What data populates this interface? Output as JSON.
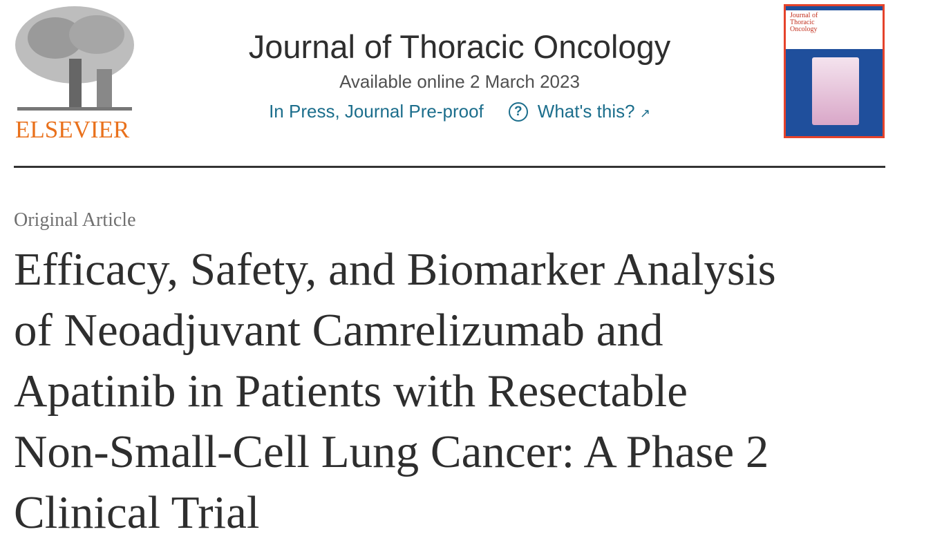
{
  "publisher": {
    "name": "ELSEVIER",
    "logo_icon": "elsevier-tree-logo",
    "color": "#e9711c"
  },
  "journal": {
    "title": "Journal of Thoracic Oncology",
    "available": "Available online 2 March 2023",
    "status": "In Press, Journal Pre-proof",
    "help_link": "What's this?",
    "help_icon": "question-circle-icon",
    "external_icon": "external-arrow-icon",
    "link_color": "#1c6e8c"
  },
  "cover": {
    "title_lines": [
      "Journal of",
      "Thoracic",
      "Oncology"
    ]
  },
  "article": {
    "type": "Original Article",
    "title_lines": [
      "Efficacy, Safety, and Biomarker Analysis",
      "of Neoadjuvant Camrelizumab and",
      "Apatinib in Patients with Resectable",
      "Non-Small-Cell Lung Cancer: A Phase 2",
      "Clinical Trial"
    ]
  }
}
